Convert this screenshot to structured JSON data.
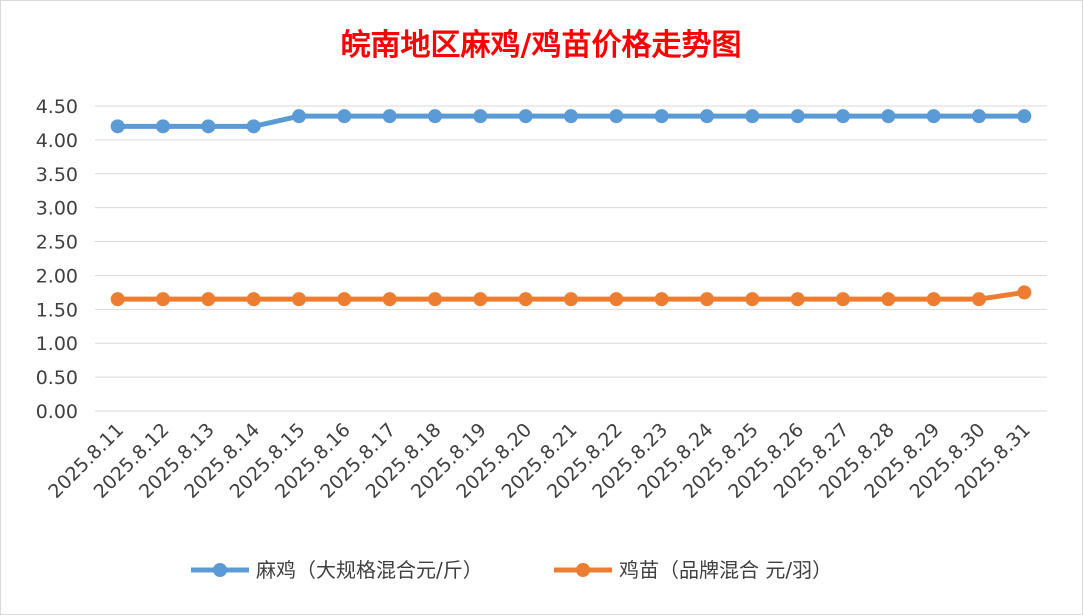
{
  "chart_data": {
    "type": "line",
    "title": "皖南地区麻鸡/鸡苗价格走势图",
    "categories": [
      "2025.8.11",
      "2025.8.12",
      "2025.8.13",
      "2025.8.14",
      "2025.8.15",
      "2025.8.16",
      "2025.8.17",
      "2025.8.18",
      "2025.8.19",
      "2025.8.20",
      "2025.8.21",
      "2025.8.22",
      "2025.8.23",
      "2025.8.24",
      "2025.8.25",
      "2025.8.26",
      "2025.8.27",
      "2025.8.28",
      "2025.8.29",
      "2025.8.30",
      "2025.8.31"
    ],
    "y_ticks": [
      "0.00",
      "0.50",
      "1.00",
      "1.50",
      "2.00",
      "2.50",
      "3.00",
      "3.50",
      "4.00",
      "4.50"
    ],
    "ylim": [
      0,
      4.5
    ],
    "grid": true,
    "legend_position": "bottom",
    "series": [
      {
        "name": "麻鸡（大规格混合元/斤）",
        "color": "#5b9bd5",
        "values": [
          4.2,
          4.2,
          4.2,
          4.2,
          4.35,
          4.35,
          4.35,
          4.35,
          4.35,
          4.35,
          4.35,
          4.35,
          4.35,
          4.35,
          4.35,
          4.35,
          4.35,
          4.35,
          4.35,
          4.35,
          4.35
        ]
      },
      {
        "name": "鸡苗（品牌混合 元/羽）",
        "color": "#ed7d31",
        "values": [
          1.65,
          1.65,
          1.65,
          1.65,
          1.65,
          1.65,
          1.65,
          1.65,
          1.65,
          1.65,
          1.65,
          1.65,
          1.65,
          1.65,
          1.65,
          1.65,
          1.65,
          1.65,
          1.65,
          1.65,
          1.75
        ]
      }
    ]
  }
}
